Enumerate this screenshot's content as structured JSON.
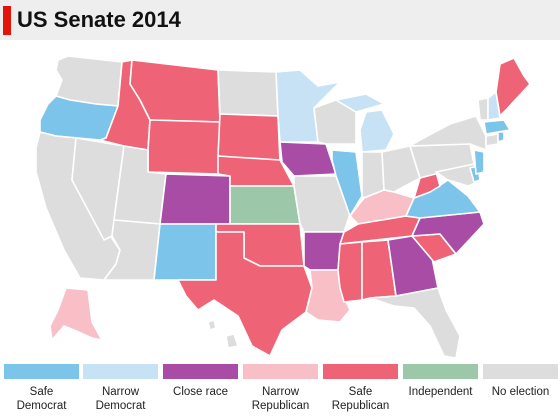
{
  "header": {
    "title": "US Senate 2014"
  },
  "colors": {
    "accent": "#e3120b",
    "safe_democrat": "#7cc4ea",
    "narrow_democrat": "#c6e2f4",
    "close_race": "#a84ca6",
    "narrow_republican": "#f8bfc6",
    "safe_republican": "#ef6376",
    "independent": "#9cc7a8",
    "no_election": "#dddddd",
    "state_border": "#ffffff"
  },
  "legend": [
    {
      "key": "safe_democrat",
      "label": "Safe Democrat",
      "color": "#7cc4ea"
    },
    {
      "key": "narrow_democrat",
      "label": "Narrow\nDemocrat",
      "color": "#c6e2f4"
    },
    {
      "key": "close_race",
      "label": "Close race",
      "color": "#a84ca6"
    },
    {
      "key": "narrow_republican",
      "label": "Narrow\nRepublican",
      "color": "#f8bfc6"
    },
    {
      "key": "safe_republican",
      "label": "Safe\nRepublican",
      "color": "#ef6376"
    },
    {
      "key": "independent",
      "label": "Independent",
      "color": "#9cc7a8"
    },
    {
      "key": "no_election",
      "label": "No election",
      "color": "#dddddd"
    }
  ]
}
